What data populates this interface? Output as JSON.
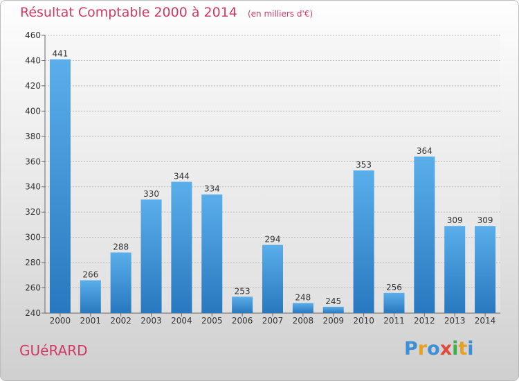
{
  "title": "Résultat Comptable 2000 à 2014",
  "subtitle": "(en milliers d'€)",
  "commune": "GUéRARD",
  "logo": {
    "letters": [
      "P",
      "r",
      "o",
      "x",
      "i",
      "t",
      "i"
    ],
    "colors": [
      "#3d8fd6",
      "#e8a021",
      "#3d8fd6",
      "#e04a3a",
      "#3db04a",
      "#e8a021",
      "#3d8fd6"
    ]
  },
  "colors": {
    "bar_top": "#5aaeea",
    "bar_bottom": "#2878bf",
    "title": "#d03a62"
  },
  "chart_data": {
    "type": "bar",
    "categories": [
      "2000",
      "2001",
      "2002",
      "2003",
      "2004",
      "2005",
      "2006",
      "2007",
      "2008",
      "2009",
      "2010",
      "2011",
      "2012",
      "2013",
      "2014"
    ],
    "values": [
      441,
      266,
      288,
      330,
      344,
      334,
      253,
      294,
      248,
      245,
      353,
      256,
      364,
      309,
      309
    ],
    "ylim": [
      240,
      460
    ],
    "yticks": [
      240,
      260,
      280,
      300,
      320,
      340,
      360,
      380,
      400,
      420,
      440,
      460
    ],
    "grid": true,
    "xlabel": "",
    "ylabel": ""
  }
}
